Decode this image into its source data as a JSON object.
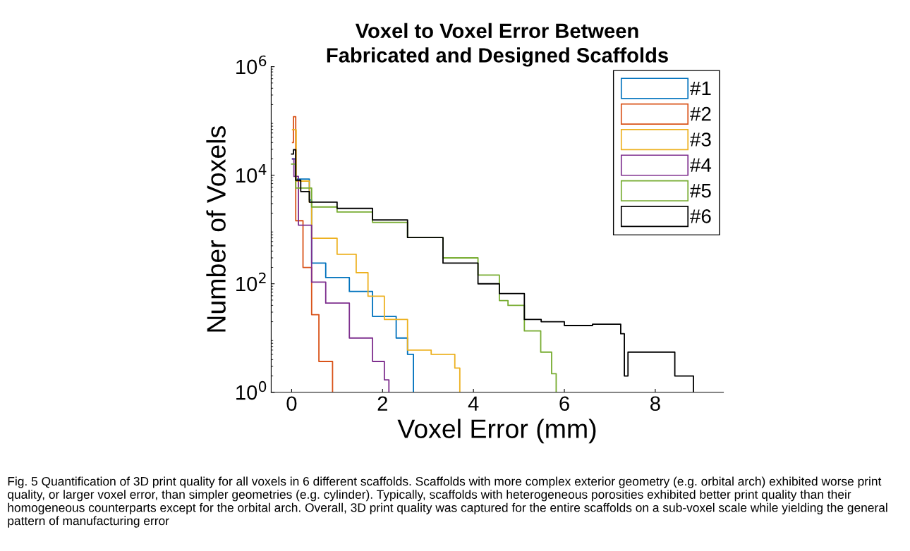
{
  "chart_data": {
    "type": "step",
    "title": "Voxel to Voxel Error Between\nFabricated and Designed Scaffolds",
    "xlabel": "Voxel Error (mm)",
    "ylabel": "Number of Voxels",
    "log": "y",
    "legend": "top right",
    "grid": false,
    "xlim": [
      -0.45,
      9.5
    ],
    "xticks": [
      0,
      2,
      4,
      6,
      8
    ],
    "ylim": [
      1,
      1000000
    ],
    "yticks": [
      {
        "value": 1,
        "label": "10$^{0}$"
      },
      {
        "value": 100,
        "label": "10$^{2}$"
      },
      {
        "value": 10000,
        "label": "10$^{4}$"
      },
      {
        "value": 1000000,
        "label": "10$^{6}$"
      }
    ],
    "series": [
      {
        "name": "#1",
        "color": "#0072bd",
        "x": [
          0.02,
          0.09,
          0.39,
          0.44,
          0.75,
          1.27,
          1.78,
          2.3,
          2.55,
          2.68
        ],
        "values": [
          20000,
          8500,
          3500,
          240,
          130,
          72,
          25,
          10,
          5,
          1
        ]
      },
      {
        "name": "#2",
        "color": "#d95319",
        "x": [
          0.02,
          0.04,
          0.09,
          0.25,
          0.44,
          0.6,
          0.9
        ],
        "values": [
          40000,
          120000,
          1450,
          200,
          27,
          3.7,
          1
        ]
      },
      {
        "name": "#3",
        "color": "#edb120",
        "x": [
          0.02,
          0.1,
          0.39,
          0.44,
          1.0,
          1.42,
          1.68,
          2.04,
          2.55,
          3.07,
          3.59,
          3.7
        ],
        "values": [
          69000,
          7800,
          3200,
          690,
          350,
          160,
          59,
          22,
          6,
          5,
          2.8,
          1
        ]
      },
      {
        "name": "#4",
        "color": "#7e2f8e",
        "x": [
          0.02,
          0.05,
          0.15,
          0.44,
          0.75,
          1.27,
          1.78,
          2.04,
          2.14
        ],
        "values": [
          20000,
          9500,
          1200,
          107,
          44,
          10,
          3.7,
          1.7,
          1
        ]
      },
      {
        "name": "#5",
        "color": "#77ac30",
        "x": [
          0.0,
          0.09,
          0.44,
          1.0,
          1.78,
          2.55,
          3.33,
          4.1,
          4.57,
          4.76,
          5.12,
          5.48,
          5.72,
          5.82
        ],
        "values": [
          16000,
          5800,
          2600,
          2100,
          1350,
          710,
          300,
          145,
          49,
          40,
          13.5,
          5.5,
          2.2,
          1
        ]
      },
      {
        "name": "#6",
        "color": "#000000",
        "x": [
          0.0,
          0.04,
          0.09,
          0.2,
          0.39,
          1.0,
          1.78,
          2.55,
          3.33,
          4.1,
          4.57,
          5.12,
          5.49,
          6.0,
          6.62,
          7.24,
          7.32,
          7.4,
          8.06,
          8.43,
          8.84
        ],
        "values": [
          24500,
          29500,
          8100,
          5000,
          3200,
          2450,
          1500,
          710,
          240,
          100,
          66,
          22,
          20,
          17,
          18,
          12,
          2,
          5.5,
          5.5,
          2,
          1
        ]
      }
    ],
    "annotations": [
      "Fig. 5 Quantification of 3D print quality for all voxels in 6 different scaffolds. Scaffolds with more complex exterior geometry (e.g. orbital arch) exhibited worse print quality, or larger voxel error, than simpler geometries (e.g. cylinder). Typically, scaffolds with heterogeneous porosities exhibited better print quality than their homogeneous counterparts except for the orbital arch. Overall, 3D print quality was captured for the entire scaffolds on a sub-voxel scale while yielding the general pattern of manufacturing error"
    ]
  }
}
